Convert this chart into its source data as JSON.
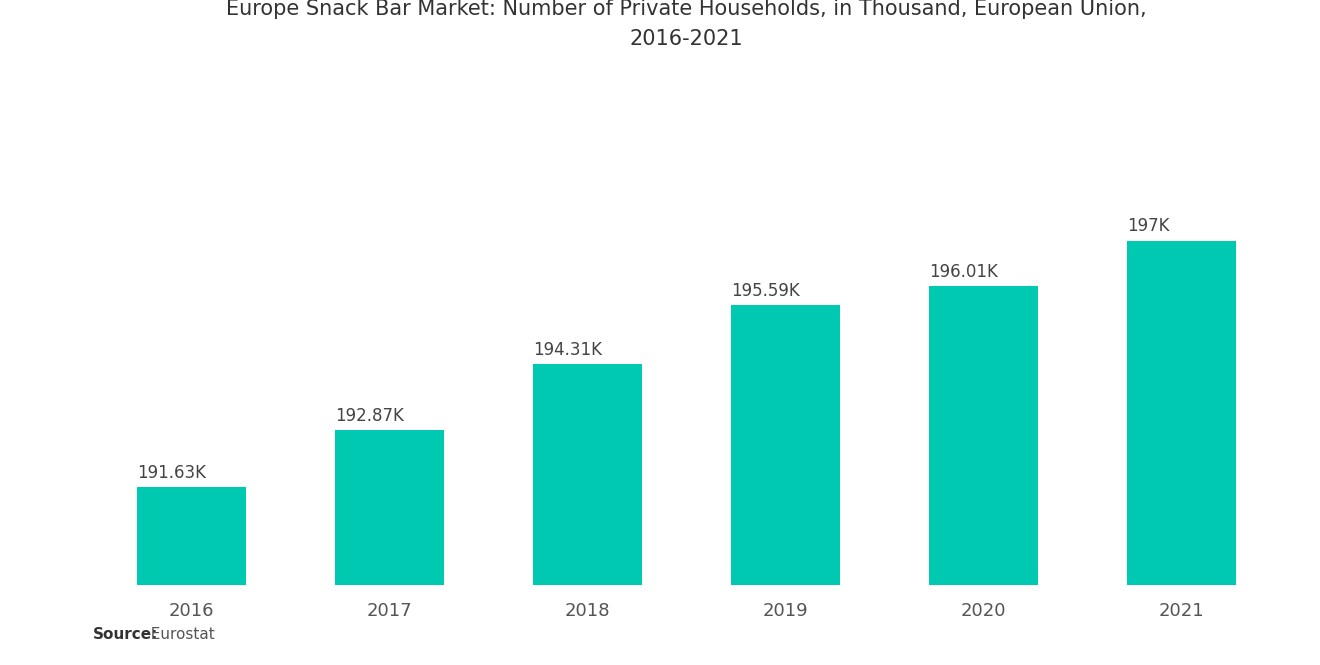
{
  "title": "Europe Snack Bar Market: Number of Private Households, in Thousand, European Union,\n2016-2021",
  "categories": [
    "2016",
    "2017",
    "2018",
    "2019",
    "2020",
    "2021"
  ],
  "values": [
    191.63,
    192.87,
    194.31,
    195.59,
    196.01,
    197.0
  ],
  "labels": [
    "191.63K",
    "192.87K",
    "194.31K",
    "195.59K",
    "196.01K",
    "197K"
  ],
  "bar_color": "#00C9B1",
  "background_color": "#ffffff",
  "title_fontsize": 15,
  "label_fontsize": 12,
  "tick_fontsize": 13,
  "source_bold": "Source:",
  "source_normal": "  Eurostat",
  "ylim_min": 189.5,
  "ylim_max": 200.5,
  "bar_width": 0.55
}
